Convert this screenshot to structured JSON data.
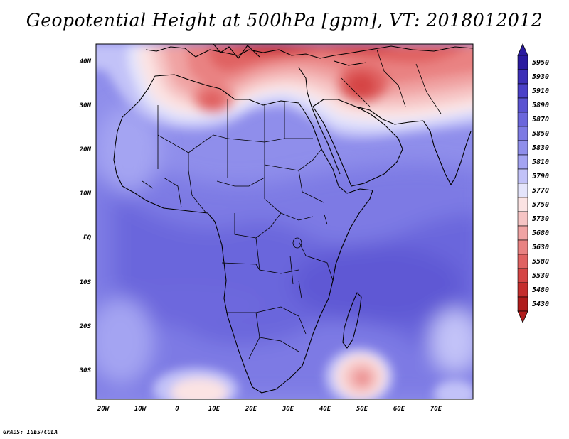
{
  "title": "Geopotential Height at 500hPa [gpm], VT: 2018012012",
  "credit": "GrADS: IGES/COLA",
  "map": {
    "lat_labels": [
      "40N",
      "30N",
      "20N",
      "10N",
      "EQ",
      "10S",
      "20S",
      "30S"
    ],
    "lon_labels": [
      "20W",
      "10W",
      "0",
      "10E",
      "20E",
      "30E",
      "40E",
      "50E",
      "60E",
      "70E"
    ],
    "extent": {
      "lon": [
        -22,
        80
      ],
      "lat": [
        -37,
        45
      ]
    }
  },
  "colorbar": {
    "levels": [
      "5950",
      "5930",
      "5910",
      "5890",
      "5870",
      "5850",
      "5830",
      "5810",
      "5790",
      "5770",
      "5750",
      "5730",
      "5680",
      "5630",
      "5580",
      "5530",
      "5480",
      "5430"
    ],
    "colors": [
      "#2a1aa0",
      "#3c2fb8",
      "#4a40c8",
      "#5a53d2",
      "#6b66dc",
      "#7d7ae4",
      "#8f8eeb",
      "#a4a4f2",
      "#c2c2f8",
      "#e4e4fb",
      "#fbe3e3",
      "#f6c4c4",
      "#f0a3a3",
      "#e98282",
      "#e06262",
      "#d54545",
      "#c52e2e",
      "#b01c1c"
    ]
  }
}
